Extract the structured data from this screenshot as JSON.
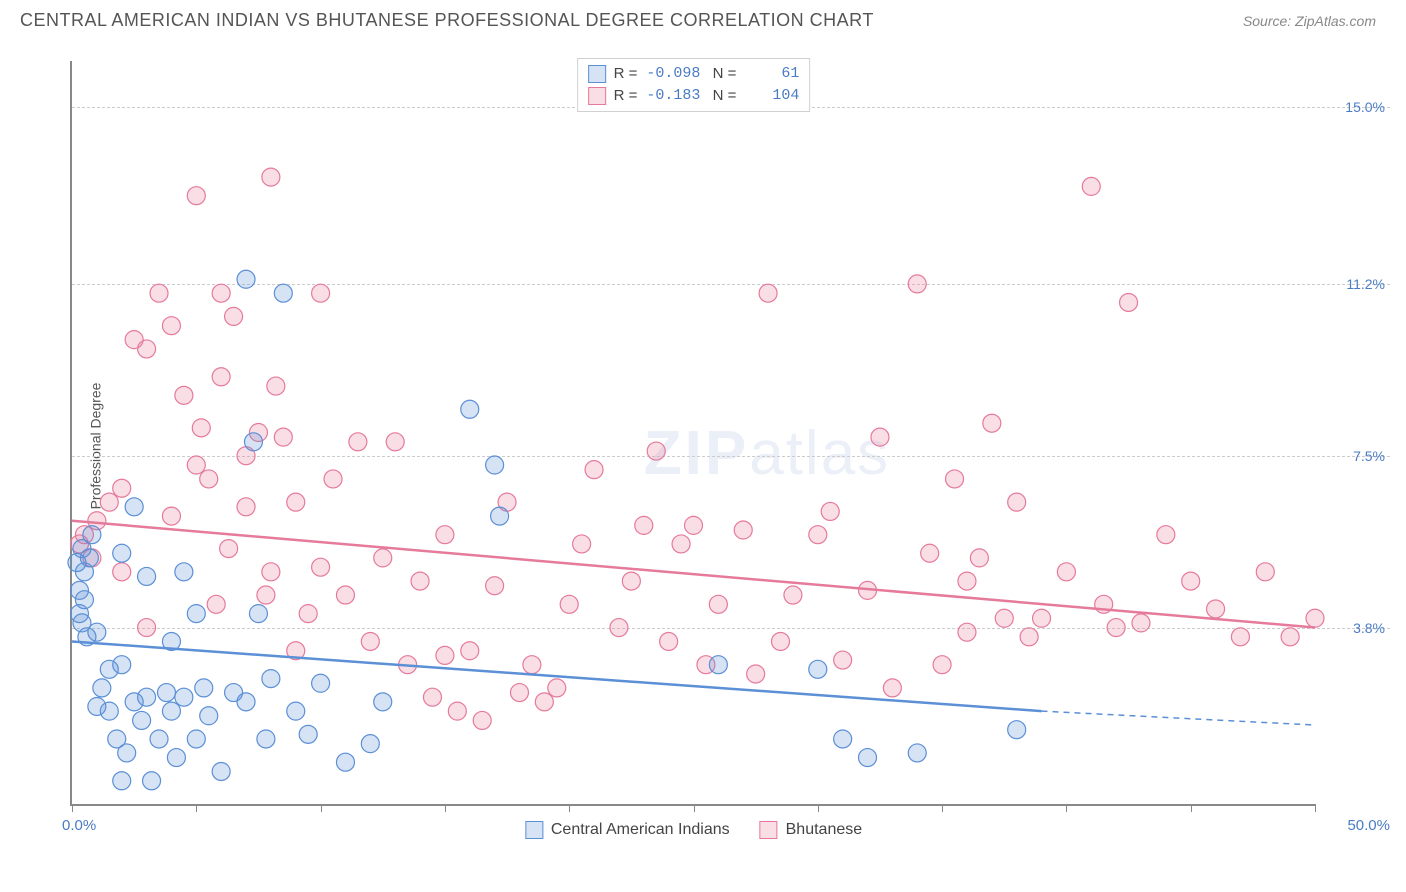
{
  "header": {
    "title": "CENTRAL AMERICAN INDIAN VS BHUTANESE PROFESSIONAL DEGREE CORRELATION CHART",
    "source_label": "Source:",
    "source_value": "ZipAtlas.com"
  },
  "chart": {
    "type": "scatter",
    "y_axis_label": "Professional Degree",
    "x_range": [
      0,
      50
    ],
    "y_range": [
      0,
      16
    ],
    "x_tick_step": 5,
    "x_min_label": "0.0%",
    "x_max_label": "50.0%",
    "y_ticks": [
      {
        "v": 3.8,
        "label": "3.8%"
      },
      {
        "v": 7.5,
        "label": "7.5%"
      },
      {
        "v": 11.2,
        "label": "11.2%"
      },
      {
        "v": 15.0,
        "label": "15.0%"
      }
    ],
    "background_color": "#ffffff",
    "grid_color": "#cccccc",
    "axis_color": "#888888",
    "label_color": "#4a7cc4",
    "marker_radius": 9,
    "marker_fill_opacity": 0.25,
    "marker_stroke_width": 1.2,
    "watermark_part1": "ZIP",
    "watermark_part2": "atlas",
    "series": [
      {
        "key": "cai",
        "name": "Central American Indians",
        "color": "#5b8fd6",
        "fill": "rgba(91,143,214,0.25)",
        "R": "-0.098",
        "N": "61",
        "trend": {
          "x1": 0,
          "y1": 3.5,
          "x2": 39,
          "y2": 2.0,
          "extrap_x": 50,
          "extrap_y": 1.7
        },
        "points": [
          [
            0.2,
            5.2
          ],
          [
            0.3,
            4.6
          ],
          [
            0.3,
            4.1
          ],
          [
            0.4,
            5.5
          ],
          [
            0.4,
            3.9
          ],
          [
            0.5,
            5.0
          ],
          [
            0.5,
            4.4
          ],
          [
            0.6,
            3.6
          ],
          [
            0.7,
            5.3
          ],
          [
            0.8,
            5.8
          ],
          [
            1,
            2.1
          ],
          [
            1,
            3.7
          ],
          [
            1.2,
            2.5
          ],
          [
            1.5,
            2.0
          ],
          [
            1.5,
            2.9
          ],
          [
            1.8,
            1.4
          ],
          [
            2,
            5.4
          ],
          [
            2,
            0.5
          ],
          [
            2,
            3.0
          ],
          [
            2.2,
            1.1
          ],
          [
            2.5,
            2.2
          ],
          [
            2.5,
            6.4
          ],
          [
            2.8,
            1.8
          ],
          [
            3,
            2.3
          ],
          [
            3,
            4.9
          ],
          [
            3.2,
            0.5
          ],
          [
            3.5,
            1.4
          ],
          [
            3.8,
            2.4
          ],
          [
            4,
            2.0
          ],
          [
            4,
            3.5
          ],
          [
            4.2,
            1.0
          ],
          [
            4.5,
            5.0
          ],
          [
            4.5,
            2.3
          ],
          [
            5,
            4.1
          ],
          [
            5,
            1.4
          ],
          [
            5.3,
            2.5
          ],
          [
            5.5,
            1.9
          ],
          [
            6,
            0.7
          ],
          [
            6.5,
            2.4
          ],
          [
            7,
            2.2
          ],
          [
            7,
            11.3
          ],
          [
            7.3,
            7.8
          ],
          [
            7.5,
            4.1
          ],
          [
            7.8,
            1.4
          ],
          [
            8,
            2.7
          ],
          [
            8.5,
            11.0
          ],
          [
            9,
            2.0
          ],
          [
            9.5,
            1.5
          ],
          [
            10,
            2.6
          ],
          [
            11,
            0.9
          ],
          [
            12,
            1.3
          ],
          [
            12.5,
            2.2
          ],
          [
            16,
            8.5
          ],
          [
            17,
            7.3
          ],
          [
            17.2,
            6.2
          ],
          [
            26,
            3.0
          ],
          [
            30,
            2.9
          ],
          [
            31,
            1.4
          ],
          [
            32,
            1.0
          ],
          [
            34,
            1.1
          ],
          [
            38,
            1.6
          ]
        ]
      },
      {
        "key": "bhu",
        "name": "Bhutanese",
        "color": "#e67a9b",
        "fill": "rgba(230,122,155,0.25)",
        "R": "-0.183",
        "N": "104",
        "trend": {
          "x1": 0,
          "y1": 6.1,
          "x2": 50,
          "y2": 3.8,
          "extrap_x": 50,
          "extrap_y": 3.8
        },
        "points": [
          [
            0.3,
            5.6
          ],
          [
            0.5,
            5.8
          ],
          [
            0.8,
            5.3
          ],
          [
            1,
            6.1
          ],
          [
            1.5,
            6.5
          ],
          [
            2,
            6.8
          ],
          [
            2,
            5.0
          ],
          [
            2.5,
            10.0
          ],
          [
            3,
            9.8
          ],
          [
            3,
            3.8
          ],
          [
            3.5,
            11.0
          ],
          [
            4,
            10.3
          ],
          [
            4,
            6.2
          ],
          [
            4.5,
            8.8
          ],
          [
            5,
            7.3
          ],
          [
            5,
            13.1
          ],
          [
            5.2,
            8.1
          ],
          [
            5.5,
            7.0
          ],
          [
            5.8,
            4.3
          ],
          [
            6,
            9.2
          ],
          [
            6,
            11.0
          ],
          [
            6.3,
            5.5
          ],
          [
            6.5,
            10.5
          ],
          [
            7,
            6.4
          ],
          [
            7,
            7.5
          ],
          [
            7.5,
            8.0
          ],
          [
            7.8,
            4.5
          ],
          [
            8,
            5.0
          ],
          [
            8,
            13.5
          ],
          [
            8.2,
            9.0
          ],
          [
            8.5,
            7.9
          ],
          [
            9,
            6.5
          ],
          [
            9,
            3.3
          ],
          [
            9.5,
            4.1
          ],
          [
            10,
            11.0
          ],
          [
            10,
            5.1
          ],
          [
            10.5,
            7.0
          ],
          [
            11,
            4.5
          ],
          [
            11.5,
            7.8
          ],
          [
            12,
            3.5
          ],
          [
            12.5,
            5.3
          ],
          [
            13,
            7.8
          ],
          [
            13.5,
            3.0
          ],
          [
            14,
            4.8
          ],
          [
            14.5,
            2.3
          ],
          [
            15,
            3.2
          ],
          [
            15,
            5.8
          ],
          [
            15.5,
            2.0
          ],
          [
            16,
            3.3
          ],
          [
            16.5,
            1.8
          ],
          [
            17,
            4.7
          ],
          [
            17.5,
            6.5
          ],
          [
            18,
            2.4
          ],
          [
            18.5,
            3.0
          ],
          [
            19,
            2.2
          ],
          [
            19.5,
            2.5
          ],
          [
            20,
            4.3
          ],
          [
            20.5,
            5.6
          ],
          [
            21,
            7.2
          ],
          [
            22,
            3.8
          ],
          [
            22.5,
            4.8
          ],
          [
            23,
            6.0
          ],
          [
            23.5,
            7.6
          ],
          [
            24,
            3.5
          ],
          [
            24.5,
            5.6
          ],
          [
            25,
            6.0
          ],
          [
            25.5,
            3.0
          ],
          [
            26,
            4.3
          ],
          [
            27,
            5.9
          ],
          [
            27.5,
            2.8
          ],
          [
            28,
            11.0
          ],
          [
            28.5,
            3.5
          ],
          [
            29,
            4.5
          ],
          [
            30,
            5.8
          ],
          [
            30.5,
            6.3
          ],
          [
            31,
            3.1
          ],
          [
            32,
            4.6
          ],
          [
            32.5,
            7.9
          ],
          [
            33,
            2.5
          ],
          [
            34,
            11.2
          ],
          [
            34.5,
            5.4
          ],
          [
            35,
            3.0
          ],
          [
            35.5,
            7.0
          ],
          [
            36,
            4.8
          ],
          [
            36,
            3.7
          ],
          [
            36.5,
            5.3
          ],
          [
            37,
            8.2
          ],
          [
            37.5,
            4.0
          ],
          [
            38,
            6.5
          ],
          [
            38.5,
            3.6
          ],
          [
            39,
            4.0
          ],
          [
            40,
            5.0
          ],
          [
            41,
            13.3
          ],
          [
            41.5,
            4.3
          ],
          [
            42,
            3.8
          ],
          [
            42.5,
            10.8
          ],
          [
            43,
            3.9
          ],
          [
            44,
            5.8
          ],
          [
            45,
            4.8
          ],
          [
            46,
            4.2
          ],
          [
            47,
            3.6
          ],
          [
            48,
            5.0
          ],
          [
            49,
            3.6
          ],
          [
            50,
            4.0
          ]
        ]
      }
    ]
  }
}
